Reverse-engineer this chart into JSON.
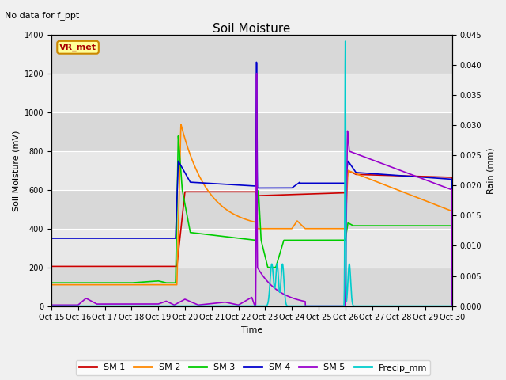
{
  "title": "Soil Moisture",
  "subtitle": "No data for f_ppt",
  "ylabel_left": "Soil Moisture (mV)",
  "ylabel_right": "Rain (mm)",
  "xlabel": "Time",
  "fig_facecolor": "#f0f0f0",
  "plot_bg_color": "#e0e0e0",
  "ylim_left": [
    0,
    1400
  ],
  "ylim_right": [
    0,
    0.045
  ],
  "yticks_left": [
    0,
    200,
    400,
    600,
    800,
    1000,
    1200,
    1400
  ],
  "yticks_right": [
    0.0,
    0.005,
    0.01,
    0.015,
    0.02,
    0.025,
    0.03,
    0.035,
    0.04,
    0.045
  ],
  "xtick_labels": [
    "Oct 15",
    "Oct 16",
    "Oct 17",
    "Oct 18",
    "Oct 19",
    "Oct 20",
    "Oct 21",
    "Oct 22",
    "Oct 23",
    "Oct 24",
    "Oct 25",
    "Oct 26",
    "Oct 27",
    "Oct 28",
    "Oct 29",
    "Oct 30"
  ],
  "colors": {
    "SM1": "#cc0000",
    "SM2": "#ff8800",
    "SM3": "#00cc00",
    "SM4": "#0000cc",
    "SM5": "#9900cc",
    "Precip": "#00cccc"
  },
  "legend_box_facecolor": "#ffff99",
  "legend_box_edgecolor": "#cc8800",
  "vr_met_label": "VR_met",
  "title_fontsize": 11,
  "subtitle_fontsize": 8,
  "axis_label_fontsize": 8,
  "tick_fontsize": 7,
  "legend_fontsize": 8
}
